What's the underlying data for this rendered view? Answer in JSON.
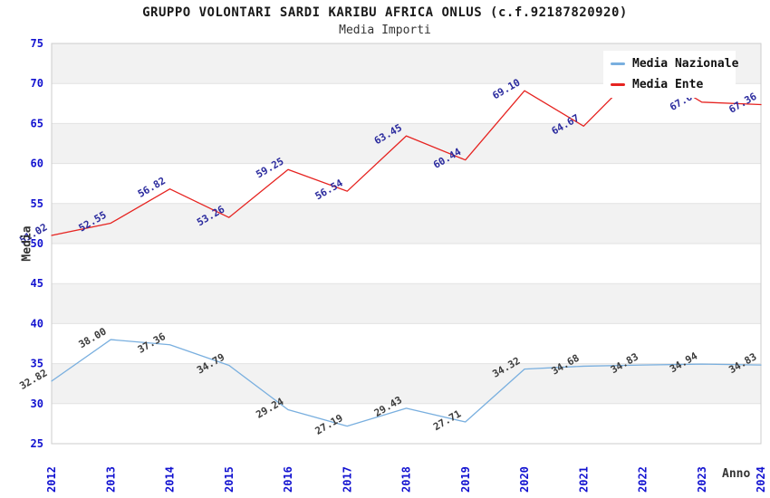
{
  "chart_data": {
    "type": "line",
    "title": "GRUPPO VOLONTARI SARDI KARIBU AFRICA ONLUS (c.f.92187820920)",
    "subtitle": "Media Importi",
    "xlabel": "Anno",
    "ylabel": "Media",
    "categories": [
      "2012",
      "2013",
      "2014",
      "2015",
      "2016",
      "2017",
      "2018",
      "2019",
      "2020",
      "2021",
      "2022",
      "2023",
      "2024"
    ],
    "series": [
      {
        "name": "Media Nazionale",
        "color": "#79afdf",
        "label_color": "#3c3c3c",
        "values": [
          32.82,
          38.0,
          37.36,
          34.79,
          29.24,
          27.19,
          29.43,
          27.71,
          34.32,
          34.68,
          34.83,
          34.94,
          34.83
        ]
      },
      {
        "name": "Media Ente",
        "color": "#e62320",
        "label_color": "#2b2b9e",
        "values": [
          51.02,
          52.55,
          56.82,
          53.26,
          59.25,
          56.54,
          63.45,
          60.44,
          69.1,
          64.67,
          72.11,
          67.67,
          67.36
        ]
      }
    ],
    "ylim": [
      25,
      75
    ],
    "ytick_step": 5,
    "grid": true,
    "legend_position": "top-right",
    "band_colors": [
      "#ffffff",
      "#f2f2f2"
    ],
    "gridline_color": "#e2e2e2",
    "border_color": "#cccccc",
    "axis_tick_color": "#1212d0"
  }
}
